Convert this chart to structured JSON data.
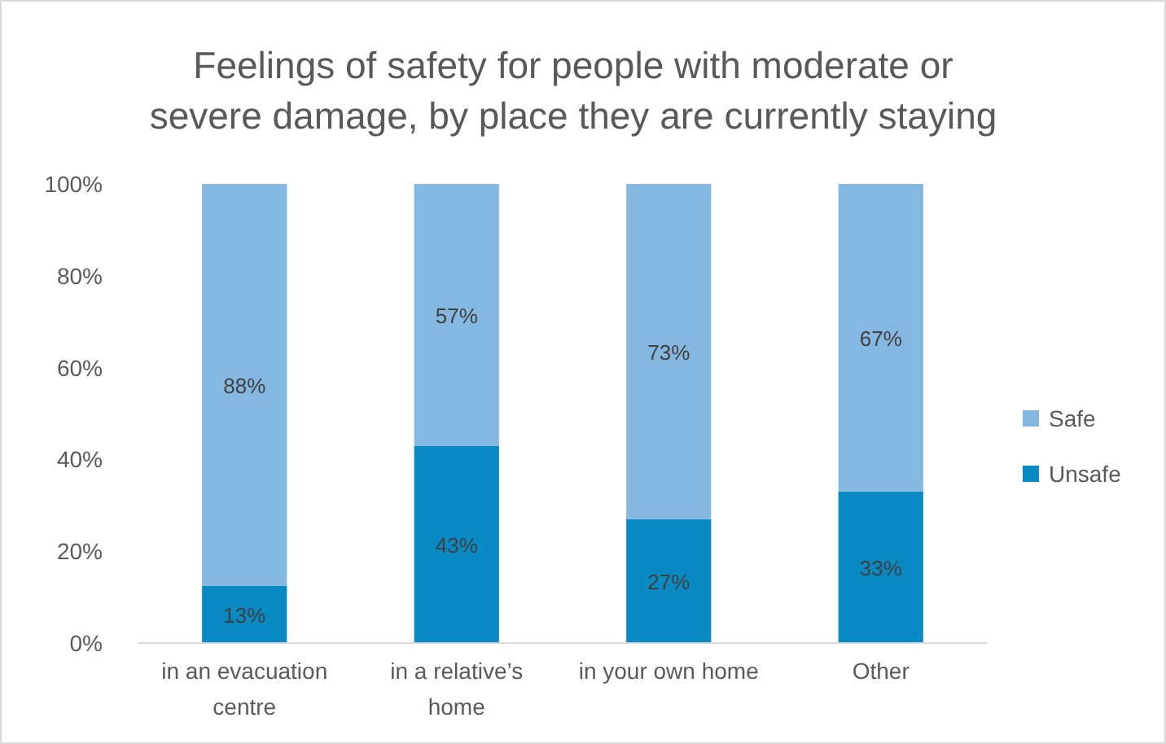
{
  "chart_data": {
    "type": "bar",
    "title": "Feelings of safety for people with moderate or severe damage, by place they are currently staying",
    "categories": [
      "in an evacuation centre",
      "in a relative’s home",
      "in your own home",
      "Other"
    ],
    "stacked": true,
    "series": [
      {
        "name": "Unsafe",
        "color": "#0a8ac2",
        "values": [
          12.5,
          43,
          27,
          33
        ],
        "value_labels": [
          "13%",
          "43%",
          "27%",
          "33%"
        ]
      },
      {
        "name": "Safe",
        "color": "#85b8e1",
        "values": [
          87.5,
          57,
          73,
          67
        ],
        "value_labels": [
          "88%",
          "57%",
          "73%",
          "67%"
        ]
      }
    ],
    "ylim": [
      0,
      100
    ],
    "yticks": [
      {
        "value": 0,
        "label": "0%"
      },
      {
        "value": 20,
        "label": "20%"
      },
      {
        "value": 40,
        "label": "40%"
      },
      {
        "value": 60,
        "label": "60%"
      },
      {
        "value": 80,
        "label": "80%"
      },
      {
        "value": 100,
        "label": "100%"
      }
    ],
    "grid": false,
    "legend": "right"
  }
}
